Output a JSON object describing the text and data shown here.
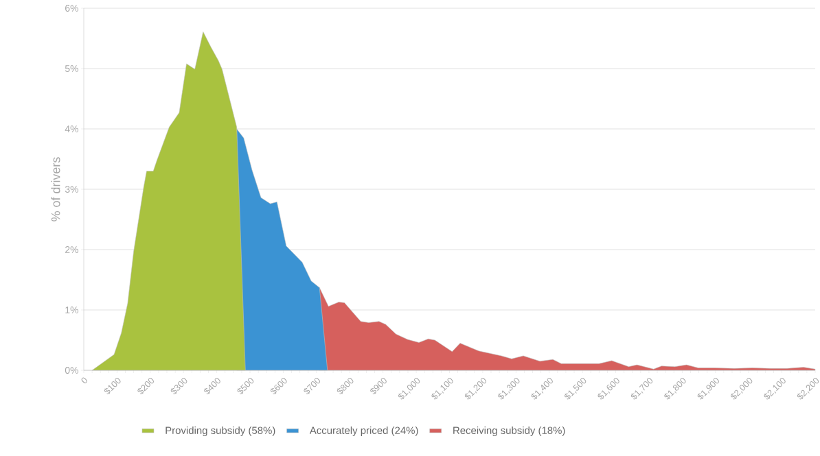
{
  "chart_data": {
    "type": "area",
    "ylabel": "% of drivers",
    "xlim": [
      0,
      2200
    ],
    "ylim": [
      0,
      6
    ],
    "xticks": [
      0,
      {
        "value": 25,
        "label": null
      },
      {
        "value": 50,
        "label": null
      },
      {
        "value": 75,
        "label": null
      },
      {
        "value": 100,
        "label": "$100"
      },
      {
        "value": 125,
        "label": null
      },
      {
        "value": 150,
        "label": null
      },
      {
        "value": 175,
        "label": null
      },
      {
        "value": 200,
        "label": "$200"
      },
      {
        "value": 225,
        "label": null
      },
      {
        "value": 250,
        "label": null
      },
      {
        "value": 275,
        "label": null
      },
      {
        "value": 300,
        "label": "$300"
      },
      {
        "value": 325,
        "label": null
      },
      {
        "value": 350,
        "label": null
      },
      {
        "value": 375,
        "label": null
      },
      {
        "value": 400,
        "label": "$400"
      },
      {
        "value": 425,
        "label": null
      },
      {
        "value": 450,
        "label": null
      },
      {
        "value": 475,
        "label": null
      },
      {
        "value": 500,
        "label": "$500"
      },
      {
        "value": 525,
        "label": null
      },
      {
        "value": 550,
        "label": null
      },
      {
        "value": 575,
        "label": null
      },
      {
        "value": 600,
        "label": "$600"
      },
      {
        "value": 625,
        "label": null
      },
      {
        "value": 650,
        "label": null
      },
      {
        "value": 675,
        "label": null
      },
      {
        "value": 700,
        "label": "$700"
      },
      {
        "value": 725,
        "label": null
      },
      {
        "value": 750,
        "label": null
      },
      {
        "value": 775,
        "label": null
      },
      {
        "value": 800,
        "label": "$800"
      },
      {
        "value": 825,
        "label": null
      },
      {
        "value": 850,
        "label": null
      },
      {
        "value": 875,
        "label": null
      },
      {
        "value": 900,
        "label": "$900"
      },
      {
        "value": 925,
        "label": null
      },
      {
        "value": 950,
        "label": null
      },
      {
        "value": 975,
        "label": null
      },
      {
        "value": 1000,
        "label": "$1,000"
      },
      {
        "value": 1025,
        "label": null
      },
      {
        "value": 1050,
        "label": null
      },
      {
        "value": 1075,
        "label": null
      },
      {
        "value": 1100,
        "label": "$1,100"
      },
      {
        "value": 1125,
        "label": null
      },
      {
        "value": 1150,
        "label": null
      },
      {
        "value": 1175,
        "label": null
      },
      {
        "value": 1200,
        "label": "$1,200"
      },
      {
        "value": 1225,
        "label": null
      },
      {
        "value": 1250,
        "label": null
      },
      {
        "value": 1275,
        "label": null
      },
      {
        "value": 1300,
        "label": "$1,300"
      },
      {
        "value": 1325,
        "label": null
      },
      {
        "value": 1350,
        "label": null
      },
      {
        "value": 1375,
        "label": null
      },
      {
        "value": 1400,
        "label": "$1,400"
      },
      {
        "value": 1425,
        "label": null
      },
      {
        "value": 1450,
        "label": null
      },
      {
        "value": 1475,
        "label": null
      },
      {
        "value": 1500,
        "label": "$1,500"
      },
      {
        "value": 1525,
        "label": null
      },
      {
        "value": 1550,
        "label": null
      },
      {
        "value": 1575,
        "label": null
      },
      {
        "value": 1600,
        "label": "$1,600"
      },
      {
        "value": 1625,
        "label": null
      },
      {
        "value": 1650,
        "label": null
      },
      {
        "value": 1675,
        "label": null
      },
      {
        "value": 1700,
        "label": "$1,700"
      },
      {
        "value": 1725,
        "label": null
      },
      {
        "value": 1750,
        "label": null
      },
      {
        "value": 1775,
        "label": null
      },
      {
        "value": 1800,
        "label": "$1,800"
      },
      {
        "value": 1825,
        "label": null
      },
      {
        "value": 1850,
        "label": null
      },
      {
        "value": 1875,
        "label": null
      },
      {
        "value": 1900,
        "label": "$1,900"
      },
      {
        "value": 1925,
        "label": null
      },
      {
        "value": 1950,
        "label": null
      },
      {
        "value": 1975,
        "label": null
      },
      {
        "value": 2000,
        "label": "$2,000"
      },
      {
        "value": 2025,
        "label": null
      },
      {
        "value": 2050,
        "label": null
      },
      {
        "value": 2075,
        "label": null
      },
      {
        "value": 2100,
        "label": "$2,100"
      },
      {
        "value": 2125,
        "label": null
      },
      {
        "value": 2150,
        "label": null
      },
      {
        "value": 2175,
        "label": null
      },
      {
        "value": 2200,
        "label": "$2,200"
      }
    ],
    "yticks": [
      {
        "value": 0,
        "label": "0%"
      },
      {
        "value": 1,
        "label": "1%"
      },
      {
        "value": 2,
        "label": "2%"
      },
      {
        "value": 3,
        "label": "3%"
      },
      {
        "value": 4,
        "label": "4%"
      },
      {
        "value": 5,
        "label": "5%"
      },
      {
        "value": 6,
        "label": "6%"
      }
    ],
    "grid": "y",
    "legend": "bottom",
    "series": [
      {
        "name": "Providing subsidy (58%)",
        "color": "#a9c23f",
        "x": [
          25,
          91,
          113,
          132,
          150,
          180,
          189,
          209,
          220,
          257,
          287,
          309,
          334,
          359,
          382,
          405,
          416,
          460,
          486
        ],
        "values": [
          0,
          0.26,
          0.62,
          1.11,
          1.97,
          3.03,
          3.3,
          3.3,
          3.48,
          4.03,
          4.27,
          5.08,
          4.99,
          5.61,
          5.36,
          5.13,
          4.99,
          4.03,
          0
        ]
      },
      {
        "name": "Accurately priced (24%)",
        "color": "#3b93d3",
        "x": [
          460,
          481,
          506,
          533,
          561,
          581,
          609,
          657,
          684,
          709,
          733
        ],
        "values": [
          4.0,
          3.85,
          3.32,
          2.86,
          2.76,
          2.79,
          2.06,
          1.79,
          1.48,
          1.37,
          0
        ]
      },
      {
        "name": "Receiving subsidy (18%)",
        "color": "#d6605d",
        "x": [
          709,
          736,
          767,
          784,
          833,
          857,
          888,
          908,
          939,
          974,
          1008,
          1036,
          1056,
          1108,
          1132,
          1188,
          1256,
          1287,
          1322,
          1372,
          1411,
          1436,
          1550,
          1588,
          1639,
          1664,
          1714,
          1738,
          1778,
          1813,
          1848,
          1897,
          1957,
          2011,
          2066,
          2115,
          2165,
          2200
        ],
        "values": [
          1.37,
          1.06,
          1.13,
          1.12,
          0.81,
          0.79,
          0.81,
          0.76,
          0.6,
          0.51,
          0.46,
          0.52,
          0.5,
          0.31,
          0.45,
          0.32,
          0.24,
          0.19,
          0.24,
          0.15,
          0.18,
          0.11,
          0.11,
          0.16,
          0.06,
          0.09,
          0.02,
          0.07,
          0.06,
          0.09,
          0.04,
          0.04,
          0.03,
          0.04,
          0.03,
          0.03,
          0.05,
          0.02
        ]
      }
    ]
  }
}
